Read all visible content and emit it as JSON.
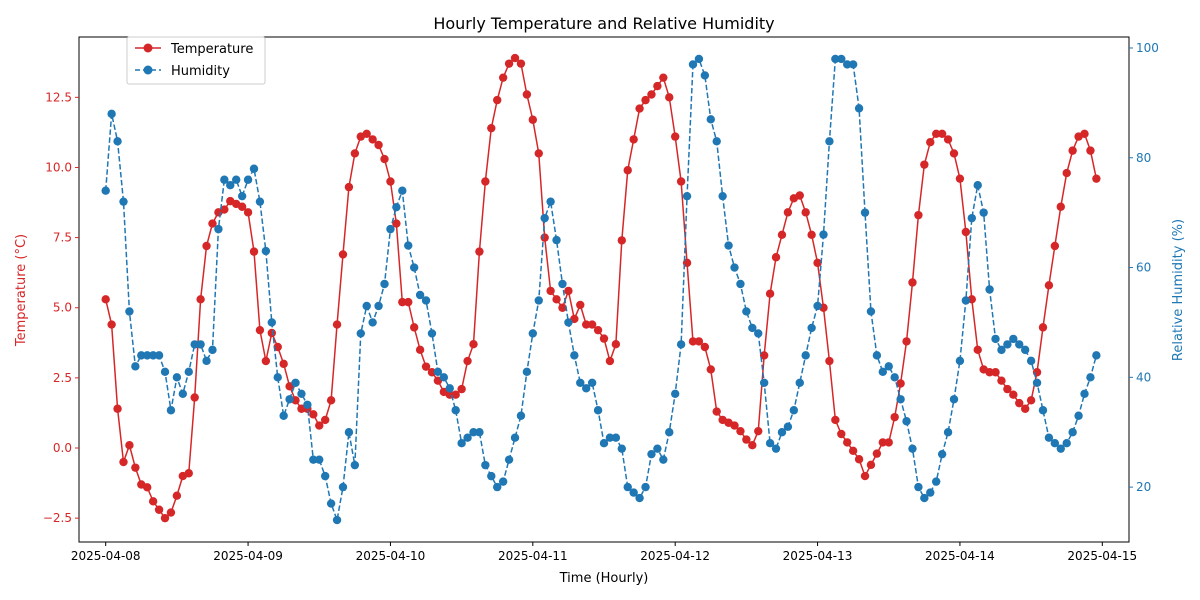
{
  "chart_data": {
    "type": "line",
    "title": "Hourly Temperature and Relative Humidity",
    "xlabel": "Time (Hourly)",
    "ylabel_left": "Temperature (°C)",
    "ylabel_right": "Relative Humidity (%)",
    "x_ticks": [
      "2025-04-08",
      "2025-04-09",
      "2025-04-10",
      "2025-04-11",
      "2025-04-12",
      "2025-04-13",
      "2025-04-14",
      "2025-04-15"
    ],
    "x_start": "2025-04-08 00:00",
    "x_interval_hours": 1,
    "xlim_hours": [
      -4.5,
      172.5
    ],
    "y_left_ticks": [
      -2.5,
      0.0,
      2.5,
      5.0,
      7.5,
      10.0,
      12.5
    ],
    "y_left_tick_labels": [
      "−2.5",
      "0.0",
      "2.5",
      "5.0",
      "7.5",
      "10.0",
      "12.5"
    ],
    "ylim_left": [
      -3.35,
      14.65
    ],
    "y_right_ticks": [
      20,
      40,
      60,
      80,
      100
    ],
    "ylim_right": [
      10,
      102
    ],
    "legend_position": "top-left",
    "colors": {
      "temperature": "#d62728",
      "humidity": "#1f77b4"
    },
    "series": [
      {
        "name": "Temperature",
        "axis": "left",
        "style": "solid",
        "values": [
          5.3,
          4.4,
          1.4,
          -0.5,
          0.1,
          -0.7,
          -1.3,
          -1.4,
          -1.9,
          -2.2,
          -2.5,
          -2.3,
          -1.7,
          -1.0,
          -0.9,
          1.8,
          5.3,
          7.2,
          8.0,
          8.4,
          8.5,
          8.8,
          8.7,
          8.6,
          8.4,
          7.0,
          4.2,
          3.1,
          4.1,
          3.6,
          3.0,
          2.2,
          1.7,
          1.4,
          1.4,
          1.2,
          0.8,
          1.0,
          1.7,
          4.4,
          6.9,
          9.3,
          10.5,
          11.1,
          11.2,
          11.0,
          10.8,
          10.3,
          9.5,
          8.0,
          5.2,
          5.2,
          4.3,
          3.5,
          2.9,
          2.7,
          2.4,
          2.0,
          1.9,
          1.9,
          2.1,
          3.1,
          3.7,
          7.0,
          9.5,
          11.4,
          12.4,
          13.2,
          13.7,
          13.9,
          13.7,
          12.6,
          11.7,
          10.5,
          7.5,
          5.6,
          5.3,
          5.0,
          5.6,
          4.6,
          5.1,
          4.4,
          4.4,
          4.2,
          3.9,
          3.1,
          3.7,
          7.4,
          9.9,
          11.0,
          12.1,
          12.4,
          12.6,
          12.9,
          13.2,
          12.5,
          11.1,
          9.5,
          6.6,
          3.8,
          3.8,
          3.6,
          2.8,
          1.3,
          1.0,
          0.9,
          0.8,
          0.6,
          0.3,
          0.1,
          0.6,
          3.3,
          5.5,
          6.8,
          7.6,
          8.4,
          8.9,
          9.0,
          8.4,
          7.6,
          6.6,
          5.0,
          3.1,
          1.0,
          0.5,
          0.2,
          -0.1,
          -0.4,
          -1.0,
          -0.6,
          -0.2,
          0.2,
          0.2,
          1.1,
          2.3,
          3.8,
          5.9,
          8.3,
          10.1,
          10.9,
          11.2,
          11.2,
          11.0,
          10.5,
          9.6,
          7.7,
          5.3,
          3.5,
          2.8,
          2.7,
          2.7,
          2.4,
          2.1,
          1.9,
          1.6,
          1.4,
          1.7,
          2.7,
          4.3,
          5.8,
          7.2,
          8.6,
          9.8,
          10.6,
          11.1,
          11.2,
          10.6,
          9.6
        ]
      },
      {
        "name": "Humidity",
        "axis": "right",
        "style": "dashed",
        "values": [
          74,
          88,
          83,
          72,
          52,
          42,
          44,
          44,
          44,
          44,
          41,
          34,
          40,
          37,
          41,
          46,
          46,
          43,
          45,
          67,
          76,
          75,
          76,
          73,
          76,
          78,
          72,
          63,
          50,
          40,
          33,
          36,
          39,
          37,
          35,
          25,
          25,
          22,
          17,
          14,
          20,
          30,
          24,
          48,
          53,
          50,
          53,
          57,
          67,
          71,
          74,
          64,
          60,
          55,
          54,
          48,
          41,
          40,
          38,
          34,
          28,
          29,
          30,
          30,
          24,
          22,
          20,
          21,
          25,
          29,
          33,
          41,
          48,
          54,
          69,
          72,
          65,
          57,
          50,
          44,
          39,
          38,
          39,
          34,
          28,
          29,
          29,
          27,
          20,
          19,
          18,
          20,
          26,
          27,
          25,
          30,
          37,
          46,
          73,
          97,
          98,
          95,
          87,
          83,
          73,
          64,
          60,
          57,
          52,
          49,
          48,
          39,
          28,
          27,
          30,
          31,
          34,
          39,
          44,
          49,
          53,
          66,
          83,
          98,
          98,
          97,
          97,
          89,
          70,
          52,
          44,
          41,
          42,
          40,
          36,
          32,
          27,
          20,
          18,
          19,
          21,
          26,
          30,
          36,
          43,
          54,
          69,
          75,
          70,
          56,
          47,
          45,
          46,
          47,
          46,
          45,
          43,
          39,
          34,
          29,
          28,
          27,
          28,
          30,
          33,
          37,
          40,
          44
        ]
      }
    ]
  }
}
